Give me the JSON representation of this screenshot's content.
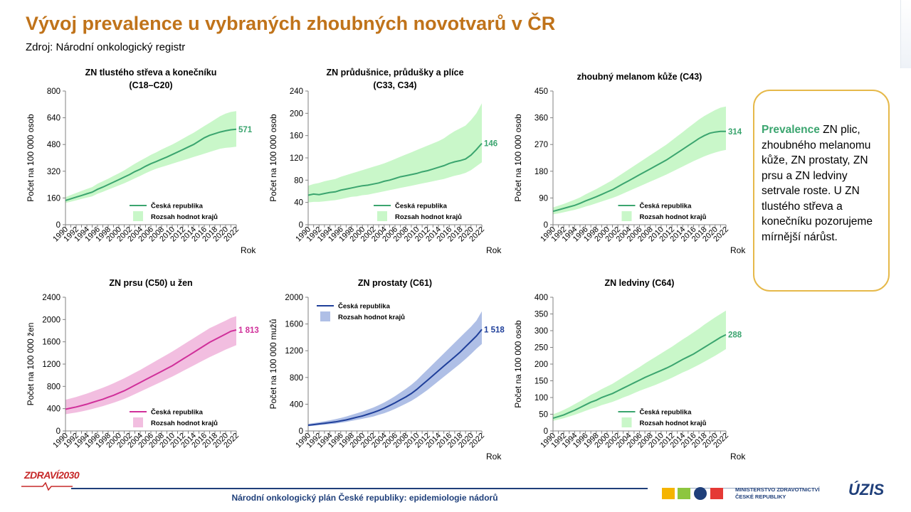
{
  "header": {
    "title": "Vývoj prevalence u vybraných zhoubných novotvarů v ČR",
    "source": "Zdroj: Národní onkologický registr"
  },
  "note": {
    "lead": "Prevalence",
    "text": " ZN plic, zhoubného melanomu kůže, ZN prostaty, ZN prsu a ZN ledviny setrvale roste. U ZN tlustého střeva a konečníku pozorujeme mírnější nárůst."
  },
  "footer": {
    "text": "Národní onkologický plán České republiky: epidemiologie nádorů",
    "logo_left": "ZDRAVÍ",
    "logo_left_year": "2030",
    "ministry_line1": "MINISTERSTVO ZDRAVOTNICTVÍ",
    "ministry_line2": "ČESKÉ REPUBLIKY",
    "logo_right": "ÚZIS"
  },
  "chart_data": [
    {
      "type": "line",
      "title": [
        "ZN tlustého střeva a konečníku",
        "(C18–C20)"
      ],
      "ylabel": "Počet na 100 000 osob",
      "xlabel": "Rok",
      "ylim": [
        0,
        800
      ],
      "yticks": [
        0,
        160,
        320,
        480,
        640,
        800
      ],
      "ytick_labels": [
        "0",
        "160",
        "320",
        "480",
        "640",
        "800"
      ],
      "x": [
        1990,
        1991,
        1992,
        1993,
        1994,
        1995,
        1996,
        1997,
        1998,
        1999,
        2000,
        2001,
        2002,
        2003,
        2004,
        2005,
        2006,
        2007,
        2008,
        2009,
        2010,
        2011,
        2012,
        2013,
        2014,
        2015,
        2016,
        2017,
        2018,
        2019,
        2020,
        2021,
        2022
      ],
      "xtick_labels": [
        "1990",
        "1992",
        "1994",
        "1996",
        "1998",
        "2000",
        "2002",
        "2004",
        "2006",
        "2008",
        "2010",
        "2012",
        "2014",
        "2016",
        "2018",
        "2020",
        "2022"
      ],
      "series": [
        {
          "name": "Česká republika",
          "values": [
            145,
            155,
            165,
            175,
            185,
            195,
            212,
            225,
            240,
            255,
            270,
            285,
            300,
            318,
            332,
            350,
            365,
            378,
            392,
            405,
            420,
            435,
            450,
            465,
            480,
            500,
            520,
            535,
            545,
            555,
            562,
            568,
            571
          ]
        }
      ],
      "band_lower": [
        130,
        138,
        146,
        154,
        162,
        170,
        185,
        197,
        210,
        222,
        235,
        248,
        262,
        278,
        292,
        308,
        322,
        335,
        345,
        355,
        365,
        375,
        385,
        395,
        405,
        415,
        425,
        435,
        445,
        455,
        460,
        463,
        467
      ],
      "band_upper": [
        165,
        178,
        190,
        202,
        214,
        225,
        245,
        260,
        275,
        292,
        308,
        325,
        345,
        365,
        383,
        400,
        418,
        433,
        450,
        465,
        480,
        497,
        515,
        533,
        550,
        570,
        590,
        610,
        630,
        650,
        665,
        675,
        680
      ],
      "band_name": "Rozsah hodnot  krajů",
      "end_label": "571",
      "color": "#3BA56F",
      "band_color": "#C9F7C9",
      "legend": "bottom-right"
    },
    {
      "type": "line",
      "title": [
        "ZN průdušnice, průdušky a plíce",
        "(C33,  C34)"
      ],
      "ylabel": "Počet na 100 000 osob",
      "xlabel": "Rok",
      "ylim": [
        0,
        240
      ],
      "yticks": [
        0,
        40,
        80,
        120,
        160,
        200,
        240
      ],
      "ytick_labels": [
        "0",
        "40",
        "80",
        "120",
        "160",
        "200",
        "240"
      ],
      "x": [
        1990,
        1991,
        1992,
        1993,
        1994,
        1995,
        1996,
        1997,
        1998,
        1999,
        2000,
        2001,
        2002,
        2003,
        2004,
        2005,
        2006,
        2007,
        2008,
        2009,
        2010,
        2011,
        2012,
        2013,
        2014,
        2015,
        2016,
        2017,
        2018,
        2019,
        2020,
        2021,
        2022
      ],
      "xtick_labels": [
        "1990",
        "1992",
        "1994",
        "1996",
        "1998",
        "2000",
        "2002",
        "2004",
        "2006",
        "2008",
        "2010",
        "2012",
        "2014",
        "2016",
        "2018",
        "2020",
        "2022"
      ],
      "series": [
        {
          "name": "Česká republika",
          "values": [
            53,
            55,
            54,
            56,
            58,
            59,
            62,
            64,
            66,
            68,
            70,
            71,
            73,
            75,
            78,
            80,
            83,
            86,
            88,
            90,
            92,
            95,
            97,
            100,
            103,
            106,
            110,
            113,
            115,
            118,
            125,
            135,
            146
          ]
        }
      ],
      "band_lower": [
        40,
        41,
        41,
        42,
        43,
        44,
        46,
        48,
        50,
        51,
        53,
        54,
        56,
        58,
        60,
        62,
        64,
        66,
        68,
        70,
        72,
        74,
        76,
        78,
        80,
        82,
        85,
        88,
        90,
        93,
        98,
        105,
        112
      ],
      "band_upper": [
        70,
        73,
        75,
        78,
        80,
        82,
        86,
        89,
        92,
        95,
        98,
        101,
        104,
        107,
        110,
        114,
        118,
        122,
        126,
        130,
        134,
        138,
        142,
        146,
        150,
        155,
        162,
        168,
        173,
        178,
        188,
        200,
        218
      ],
      "band_name": "Rozsah hodnot  krajů",
      "end_label": "146",
      "color": "#3BA56F",
      "band_color": "#C9F7C9",
      "legend": "bottom-right"
    },
    {
      "type": "line",
      "title": [
        "zhoubný melanom kůže (C43)"
      ],
      "ylabel": "Počet na 100 000 osob",
      "xlabel": "Rok",
      "ylim": [
        0,
        450
      ],
      "yticks": [
        0,
        90,
        180,
        270,
        360,
        450
      ],
      "ytick_labels": [
        "0",
        "90",
        "180",
        "270",
        "360",
        "450"
      ],
      "x": [
        1990,
        1991,
        1992,
        1993,
        1994,
        1995,
        1996,
        1997,
        1998,
        1999,
        2000,
        2001,
        2002,
        2003,
        2004,
        2005,
        2006,
        2007,
        2008,
        2009,
        2010,
        2011,
        2012,
        2013,
        2014,
        2015,
        2016,
        2017,
        2018,
        2019,
        2020,
        2021,
        2022
      ],
      "xtick_labels": [
        "1990",
        "1992",
        "1994",
        "1996",
        "1998",
        "2000",
        "2002",
        "2004",
        "2006",
        "2008",
        "2010",
        "2012",
        "2014",
        "2016",
        "2018",
        "2020",
        "2022"
      ],
      "series": [
        {
          "name": "Česká republika",
          "values": [
            45,
            50,
            55,
            60,
            65,
            72,
            80,
            87,
            94,
            102,
            110,
            118,
            128,
            138,
            148,
            158,
            168,
            178,
            188,
            198,
            208,
            218,
            230,
            242,
            254,
            266,
            278,
            290,
            300,
            308,
            312,
            314,
            314
          ]
        }
      ],
      "band_lower": [
        35,
        38,
        42,
        46,
        50,
        55,
        61,
        66,
        72,
        78,
        84,
        90,
        97,
        105,
        113,
        121,
        129,
        137,
        145,
        153,
        161,
        169,
        178,
        187,
        196,
        205,
        214,
        222,
        230,
        237,
        243,
        248,
        252
      ],
      "band_upper": [
        58,
        64,
        70,
        77,
        84,
        92,
        102,
        111,
        120,
        130,
        140,
        150,
        162,
        174,
        186,
        198,
        210,
        222,
        234,
        246,
        258,
        270,
        284,
        298,
        312,
        326,
        340,
        354,
        366,
        376,
        386,
        394,
        398
      ],
      "band_name": "Rozsah hodnot  krajů",
      "end_label": "314",
      "color": "#3BA56F",
      "band_color": "#C9F7C9",
      "legend": "bottom-right"
    },
    {
      "type": "line",
      "title": [
        "ZN prsu (C50) u žen"
      ],
      "ylabel": "Počet na 100 000 žen",
      "xlabel": "",
      "ylim": [
        0,
        2400
      ],
      "yticks": [
        0,
        400,
        800,
        1200,
        1600,
        2000,
        2400
      ],
      "ytick_labels": [
        "0",
        "400",
        "800",
        "1200",
        "1600",
        "2000",
        "2400"
      ],
      "x": [
        1990,
        1991,
        1992,
        1993,
        1994,
        1995,
        1996,
        1997,
        1998,
        1999,
        2000,
        2001,
        2002,
        2003,
        2004,
        2005,
        2006,
        2007,
        2008,
        2009,
        2010,
        2011,
        2012,
        2013,
        2014,
        2015,
        2016,
        2017,
        2018,
        2019,
        2020,
        2021,
        2022
      ],
      "xtick_labels": [
        "1990",
        "1992",
        "1994",
        "1996",
        "1998",
        "2000",
        "2002",
        "2004",
        "2006",
        "2008",
        "2010",
        "2012",
        "2014",
        "2016",
        "2018",
        "2020",
        "2022"
      ],
      "series": [
        {
          "name": "Česká republika",
          "values": [
            390,
            410,
            430,
            455,
            480,
            510,
            540,
            570,
            605,
            640,
            680,
            720,
            770,
            820,
            870,
            920,
            970,
            1020,
            1070,
            1120,
            1170,
            1230,
            1290,
            1350,
            1410,
            1470,
            1530,
            1590,
            1640,
            1690,
            1740,
            1790,
            1813
          ]
        }
      ],
      "band_lower": [
        300,
        315,
        330,
        350,
        370,
        395,
        420,
        445,
        475,
        505,
        540,
        575,
        615,
        660,
        705,
        750,
        795,
        840,
        885,
        930,
        975,
        1025,
        1075,
        1125,
        1175,
        1225,
        1275,
        1325,
        1370,
        1415,
        1460,
        1500,
        1540
      ],
      "band_upper": [
        560,
        585,
        610,
        640,
        670,
        705,
        740,
        775,
        815,
        855,
        900,
        945,
        995,
        1045,
        1095,
        1150,
        1205,
        1260,
        1315,
        1370,
        1425,
        1485,
        1545,
        1605,
        1665,
        1725,
        1785,
        1845,
        1890,
        1935,
        1980,
        2030,
        2060
      ],
      "band_name": "Rozsah hodnot  krajů",
      "end_label": "1 813",
      "color": "#D0309A",
      "band_color": "#F2BEE0",
      "legend": "bottom-right"
    },
    {
      "type": "line",
      "title": [
        "ZN prostaty (C61)"
      ],
      "ylabel": "Počet na 100 000 mužů",
      "xlabel": "Rok",
      "ylim": [
        0,
        2000
      ],
      "yticks": [
        0,
        400,
        800,
        1200,
        1600,
        2000
      ],
      "ytick_labels": [
        "0",
        "400",
        "800",
        "1200",
        "1600",
        "2000"
      ],
      "x": [
        1990,
        1991,
        1992,
        1993,
        1994,
        1995,
        1996,
        1997,
        1998,
        1999,
        2000,
        2001,
        2002,
        2003,
        2004,
        2005,
        2006,
        2007,
        2008,
        2009,
        2010,
        2011,
        2012,
        2013,
        2014,
        2015,
        2016,
        2017,
        2018,
        2019,
        2020,
        2021,
        2022
      ],
      "xtick_labels": [
        "1990",
        "1992",
        "1994",
        "1996",
        "1998",
        "2000",
        "2002",
        "2004",
        "2006",
        "2008",
        "2010",
        "2012",
        "2014",
        "2016",
        "2018",
        "2020",
        "2022"
      ],
      "series": [
        {
          "name": "Česká republika",
          "values": [
            85,
            95,
            105,
            115,
            125,
            135,
            150,
            165,
            185,
            205,
            225,
            250,
            275,
            305,
            340,
            380,
            420,
            465,
            510,
            560,
            620,
            690,
            760,
            830,
            900,
            970,
            1040,
            1110,
            1180,
            1260,
            1340,
            1420,
            1518
          ]
        }
      ],
      "band_lower": [
        70,
        78,
        86,
        94,
        102,
        110,
        122,
        134,
        150,
        166,
        182,
        198,
        215,
        240,
        265,
        295,
        330,
        368,
        408,
        450,
        500,
        555,
        615,
        680,
        745,
        810,
        875,
        940,
        1005,
        1075,
        1150,
        1230,
        1300
      ],
      "band_upper": [
        105,
        118,
        131,
        145,
        160,
        175,
        195,
        215,
        240,
        265,
        290,
        320,
        350,
        385,
        425,
        470,
        520,
        575,
        630,
        690,
        760,
        840,
        920,
        1000,
        1080,
        1160,
        1240,
        1320,
        1400,
        1480,
        1560,
        1650,
        1790
      ],
      "band_name": "Rozsah hodnot  krajů",
      "end_label": "1 518",
      "color": "#1F3F9A",
      "band_color": "#AFBFE6",
      "legend": "top-left"
    },
    {
      "type": "line",
      "title": [
        "ZN ledviny (C64)"
      ],
      "ylabel": "Počet na 100 000 osob",
      "xlabel": "Rok",
      "ylim": [
        0,
        400
      ],
      "yticks": [
        0,
        50,
        100,
        150,
        200,
        250,
        300,
        350,
        400
      ],
      "ytick_labels": [
        "0",
        "50",
        "100",
        "150",
        "200",
        "250",
        "300",
        "350",
        "400"
      ],
      "x": [
        1990,
        1991,
        1992,
        1993,
        1994,
        1995,
        1996,
        1997,
        1998,
        1999,
        2000,
        2001,
        2002,
        2003,
        2004,
        2005,
        2006,
        2007,
        2008,
        2009,
        2010,
        2011,
        2012,
        2013,
        2014,
        2015,
        2016,
        2017,
        2018,
        2019,
        2020,
        2021,
        2022
      ],
      "xtick_labels": [
        "1990",
        "1992",
        "1994",
        "1996",
        "1998",
        "2000",
        "2002",
        "2004",
        "2006",
        "2008",
        "2010",
        "2012",
        "2014",
        "2016",
        "2018",
        "2020",
        "2022"
      ],
      "series": [
        {
          "name": "Česká republika",
          "values": [
            38,
            43,
            48,
            55,
            62,
            70,
            78,
            86,
            92,
            100,
            106,
            112,
            120,
            128,
            136,
            144,
            152,
            160,
            167,
            174,
            181,
            188,
            196,
            205,
            214,
            222,
            230,
            240,
            250,
            260,
            270,
            280,
            288
          ]
        }
      ],
      "band_lower": [
        30,
        34,
        38,
        43,
        48,
        54,
        60,
        66,
        71,
        77,
        82,
        87,
        93,
        100,
        106,
        113,
        120,
        126,
        132,
        138,
        145,
        152,
        159,
        167,
        175,
        182,
        190,
        198,
        207,
        216,
        225,
        235,
        245
      ],
      "band_upper": [
        50,
        56,
        63,
        71,
        80,
        89,
        98,
        108,
        116,
        125,
        133,
        141,
        151,
        161,
        171,
        181,
        191,
        202,
        212,
        222,
        232,
        242,
        252,
        263,
        274,
        284,
        295,
        306,
        318,
        329,
        340,
        350,
        360
      ],
      "band_name": "Rozsah hodnot  krajů",
      "end_label": "288",
      "color": "#3BA56F",
      "band_color": "#C9F7C9",
      "legend": "bottom-right"
    }
  ]
}
